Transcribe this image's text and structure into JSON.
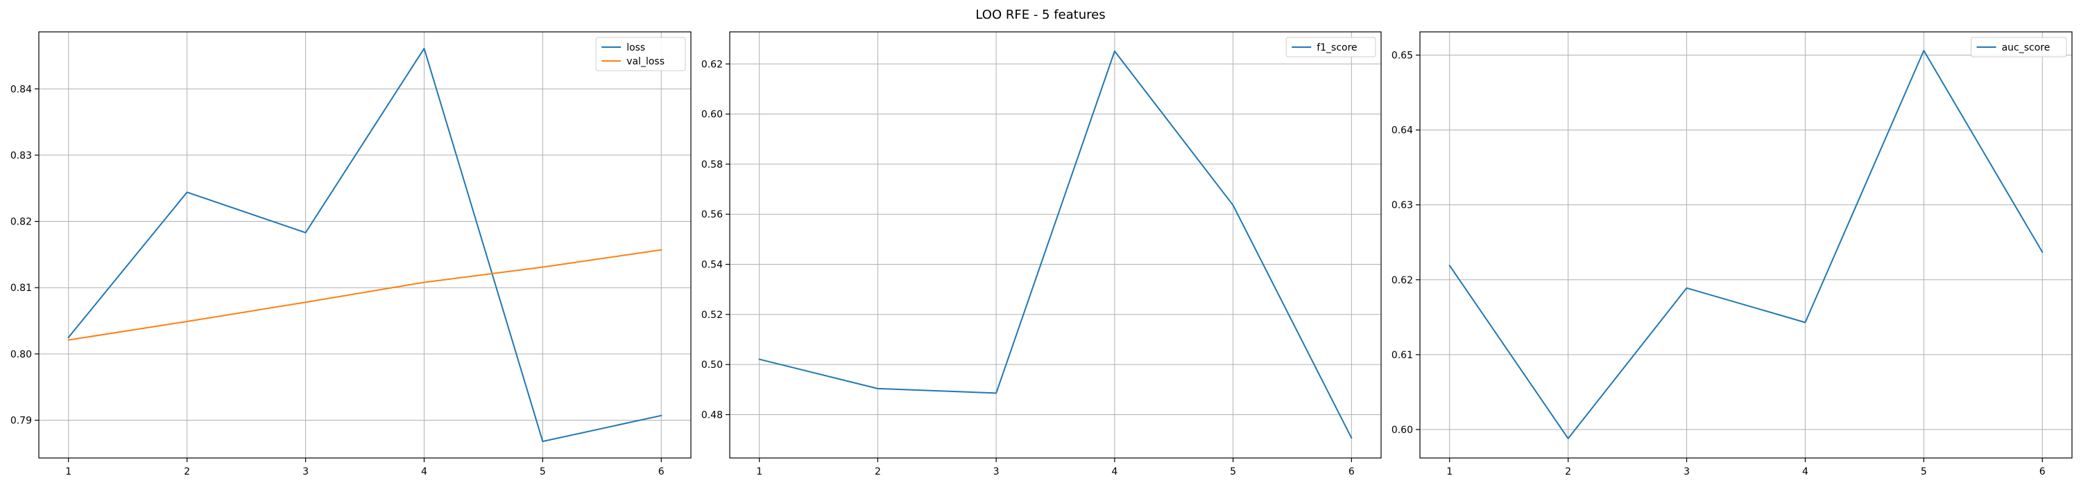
{
  "figure": {
    "title": "LOO RFE - 5 features"
  },
  "chart_data": [
    {
      "type": "line",
      "title": "",
      "xlabel": "",
      "ylabel": "",
      "x": [
        1,
        2,
        3,
        4,
        5,
        6
      ],
      "xticks": [
        1,
        2,
        3,
        4,
        5,
        6
      ],
      "xlim": [
        0.75,
        6.25
      ],
      "ylim": [
        0.7843,
        0.8486
      ],
      "yticks": [
        0.79,
        0.8,
        0.81,
        0.82,
        0.83,
        0.84
      ],
      "ytick_labels": [
        "0.79",
        "0.80",
        "0.81",
        "0.82",
        "0.83",
        "0.84"
      ],
      "grid": true,
      "legend_position": "top-right",
      "series": [
        {
          "name": "loss",
          "color": "#1f77b4",
          "values": [
            0.8025,
            0.8244,
            0.8183,
            0.8461,
            0.7868,
            0.7907
          ]
        },
        {
          "name": "val_loss",
          "color": "#ff7f0e",
          "values": [
            0.8021,
            0.8049,
            0.8078,
            0.8108,
            0.8131,
            0.8157
          ]
        }
      ]
    },
    {
      "type": "line",
      "title": "",
      "xlabel": "",
      "ylabel": "",
      "x": [
        1,
        2,
        3,
        4,
        5,
        6
      ],
      "xticks": [
        1,
        2,
        3,
        4,
        5,
        6
      ],
      "xlim": [
        0.75,
        6.25
      ],
      "ylim": [
        0.4627,
        0.6328
      ],
      "yticks": [
        0.48,
        0.5,
        0.52,
        0.54,
        0.56,
        0.58,
        0.6,
        0.62
      ],
      "ytick_labels": [
        "0.48",
        "0.50",
        "0.52",
        "0.54",
        "0.56",
        "0.58",
        "0.60",
        "0.62"
      ],
      "grid": true,
      "legend_position": "top-right",
      "series": [
        {
          "name": "f1_score",
          "color": "#1f77b4",
          "values": [
            0.5021,
            0.4904,
            0.4886,
            0.6251,
            0.5636,
            0.4707
          ]
        }
      ]
    },
    {
      "type": "line",
      "title": "",
      "xlabel": "",
      "ylabel": "",
      "x": [
        1,
        2,
        3,
        4,
        5,
        6
      ],
      "xticks": [
        1,
        2,
        3,
        4,
        5,
        6
      ],
      "xlim": [
        0.75,
        6.25
      ],
      "ylim": [
        0.5962,
        0.6531
      ],
      "yticks": [
        0.6,
        0.61,
        0.62,
        0.63,
        0.64,
        0.65
      ],
      "ytick_labels": [
        "0.60",
        "0.61",
        "0.62",
        "0.63",
        "0.64",
        "0.65"
      ],
      "grid": true,
      "legend_position": "top-right",
      "series": [
        {
          "name": "auc_score",
          "color": "#1f77b4",
          "values": [
            0.6219,
            0.5988,
            0.6189,
            0.6143,
            0.6506,
            0.6237
          ]
        }
      ]
    }
  ]
}
